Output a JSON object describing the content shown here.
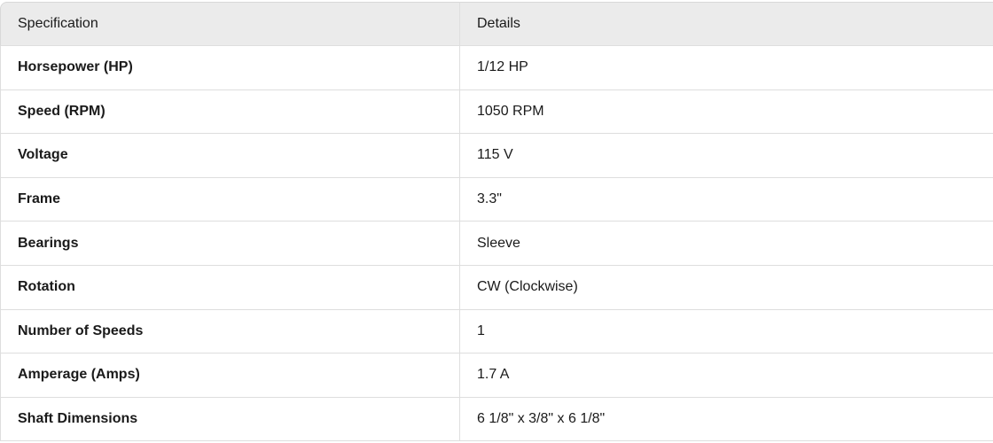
{
  "table": {
    "headers": [
      "Specification",
      "Details"
    ],
    "rows": [
      [
        "Horsepower (HP)",
        "1/12 HP"
      ],
      [
        "Speed (RPM)",
        "1050 RPM"
      ],
      [
        "Voltage",
        "115 V"
      ],
      [
        "Frame",
        "3.3\""
      ],
      [
        "Bearings",
        "Sleeve"
      ],
      [
        "Rotation",
        "CW (Clockwise)"
      ],
      [
        "Number of Speeds",
        "1"
      ],
      [
        "Amperage (Amps)",
        "1.7 A"
      ],
      [
        "Shaft Dimensions",
        "6 1/8\" x 3/8\" x 6 1/8\""
      ]
    ]
  }
}
